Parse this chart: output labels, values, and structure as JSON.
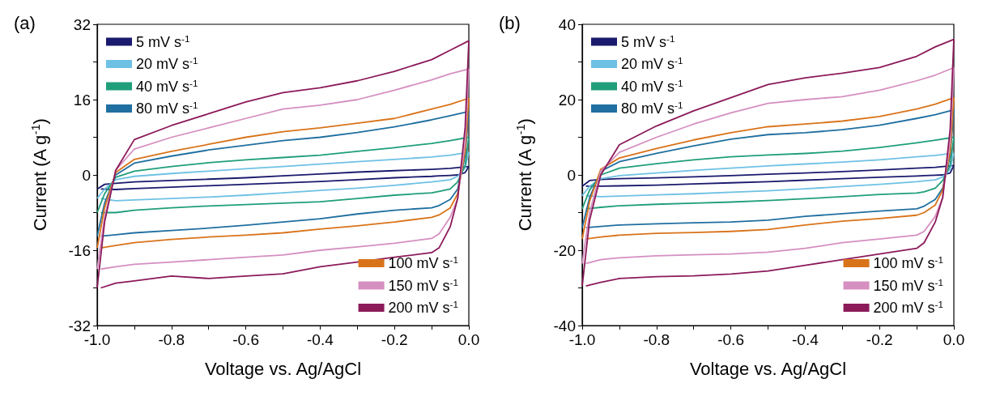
{
  "chart_data": [
    {
      "type": "line",
      "title": "(a)",
      "xlabel": "Voltage vs. Ag/AgCl",
      "ylabel": "Current (A g$^{-1}$)",
      "legend": "top left",
      "grid": false,
      "marker": "none",
      "line_style": "solid",
      "xlim": [
        -1,
        0
      ],
      "ylim": [
        -32,
        32
      ],
      "xticks": [
        {
          "value": -1,
          "label": "-1.0"
        },
        {
          "value": -0.9,
          "label": null
        },
        {
          "value": -0.8,
          "label": "-0.8"
        },
        {
          "value": -0.7,
          "label": null
        },
        {
          "value": -0.6,
          "label": "-0.6"
        },
        {
          "value": -0.5,
          "label": null
        },
        {
          "value": -0.4,
          "label": "-0.4"
        },
        {
          "value": -0.3,
          "label": null
        },
        {
          "value": -0.2,
          "label": "-0.2"
        },
        {
          "value": -0.1,
          "label": null
        },
        {
          "value": 0,
          "label": "0.0"
        }
      ],
      "yticks": [
        -32,
        {
          "value": -24,
          "label": null
        },
        -16,
        {
          "value": -8,
          "label": null
        },
        0,
        {
          "value": 8,
          "label": null
        },
        16,
        {
          "value": 24,
          "label": null
        },
        32
      ],
      "series": [
        {
          "name": "5 mV s$^{-1}$",
          "color": "#1a1a6e",
          "x": [
            -1,
            -0.98,
            -0.95,
            -0.9,
            -0.8,
            -0.7,
            -0.6,
            -0.5,
            -0.4,
            -0.3,
            -0.2,
            -0.1,
            -0.05,
            0
          ],
          "values": [
            -3,
            -2,
            -1.8,
            -1.5,
            -1.2,
            -0.9,
            -0.6,
            -0.2,
            0.2,
            0.6,
            0.9,
            1.2,
            1.4,
            1.8
          ]
        },
        {
          "color": "#1a1a6e",
          "x": [
            0,
            -0.01,
            -0.03,
            -0.05,
            -0.08,
            -0.1,
            -0.2,
            -0.3,
            -0.4,
            -0.5,
            -0.6,
            -0.7,
            -0.8,
            -0.9,
            -0.95,
            -0.99
          ],
          "values": [
            1.8,
            0.5,
            0,
            -0.1,
            -0.2,
            -0.3,
            -0.6,
            -1,
            -1.4,
            -1.7,
            -2,
            -2.3,
            -2.6,
            -2.9,
            -3.1,
            -3
          ]
        },
        {
          "name": "20 mV s$^{-1}$",
          "color": "#6ec1e4",
          "x": [
            -1,
            -0.98,
            -0.95,
            -0.9,
            -0.8,
            -0.7,
            -0.6,
            -0.5,
            -0.4,
            -0.3,
            -0.2,
            -0.1,
            -0.05,
            0
          ],
          "values": [
            -5,
            -3,
            -1,
            -0.3,
            0.3,
            0.8,
            1.3,
            1.8,
            2.3,
            2.8,
            3.3,
            3.8,
            4.2,
            4.8
          ]
        },
        {
          "color": "#6ec1e4",
          "x": [
            0,
            -0.01,
            -0.03,
            -0.05,
            -0.08,
            -0.1,
            -0.2,
            -0.3,
            -0.4,
            -0.5,
            -0.6,
            -0.7,
            -0.8,
            -0.9,
            -0.95,
            -0.99
          ],
          "values": [
            4.8,
            1.5,
            -0.3,
            -1,
            -1.3,
            -1.5,
            -2.2,
            -2.8,
            -3.3,
            -3.8,
            -4.3,
            -4.7,
            -5,
            -5.3,
            -5.5,
            -5
          ]
        },
        {
          "name": "40 mV s$^{-1}$",
          "color": "#1f9e7a",
          "x": [
            -1,
            -0.98,
            -0.95,
            -0.9,
            -0.8,
            -0.7,
            -0.6,
            -0.5,
            -0.4,
            -0.3,
            -0.2,
            -0.1,
            -0.05,
            0
          ],
          "values": [
            -8,
            -4,
            -0.5,
            0.8,
            1.8,
            2.6,
            3.2,
            3.7,
            4.2,
            5,
            5.8,
            6.7,
            7.3,
            8
          ]
        },
        {
          "color": "#1f9e7a",
          "x": [
            0,
            -0.01,
            -0.03,
            -0.05,
            -0.08,
            -0.1,
            -0.2,
            -0.3,
            -0.4,
            -0.5,
            -0.6,
            -0.7,
            -0.8,
            -0.9,
            -0.95,
            -0.99
          ],
          "values": [
            8,
            2,
            -1.5,
            -3,
            -3.5,
            -3.8,
            -4.3,
            -5,
            -5.7,
            -6,
            -6.3,
            -6.6,
            -7,
            -7.5,
            -8,
            -8
          ]
        },
        {
          "name": "80 mV s$^{-1}$",
          "color": "#1f6fa0",
          "x": [
            -1,
            -0.98,
            -0.95,
            -0.9,
            -0.8,
            -0.7,
            -0.6,
            -0.5,
            -0.4,
            -0.3,
            -0.2,
            -0.1,
            -0.05,
            0
          ],
          "values": [
            -13,
            -6,
            0,
            2.5,
            4,
            5.3,
            6.3,
            7.3,
            8,
            9,
            10.2,
            11.7,
            12.6,
            13.5
          ]
        },
        {
          "color": "#1f6fa0",
          "x": [
            0,
            -0.01,
            -0.03,
            -0.05,
            -0.08,
            -0.1,
            -0.2,
            -0.3,
            -0.4,
            -0.5,
            -0.6,
            -0.7,
            -0.8,
            -0.9,
            -0.95,
            -0.99
          ],
          "values": [
            13.5,
            4,
            -3,
            -5.2,
            -6.5,
            -7,
            -7.5,
            -8.3,
            -9.3,
            -10,
            -10.7,
            -11.3,
            -11.8,
            -12.3,
            -12.7,
            -13
          ]
        },
        {
          "name": "100 mV s$^{-1}$",
          "color": "#d9731a",
          "x": [
            -1,
            -0.98,
            -0.95,
            -0.9,
            -0.8,
            -0.7,
            -0.6,
            -0.5,
            -0.4,
            -0.3,
            -0.2,
            -0.1,
            -0.05,
            0
          ],
          "values": [
            -15.5,
            -7,
            0.5,
            3.3,
            5,
            6.5,
            8,
            9.2,
            10,
            11,
            12,
            14,
            15,
            16.3
          ]
        },
        {
          "color": "#d9731a",
          "x": [
            0,
            -0.01,
            -0.03,
            -0.05,
            -0.08,
            -0.1,
            -0.2,
            -0.3,
            -0.4,
            -0.5,
            -0.6,
            -0.7,
            -0.8,
            -0.9,
            -0.95,
            -0.99
          ],
          "values": [
            16.3,
            5,
            -4,
            -7,
            -8.5,
            -9,
            -10,
            -10.8,
            -11.5,
            -12.3,
            -12.8,
            -13.2,
            -13.7,
            -14.4,
            -15,
            -15.5
          ]
        },
        {
          "name": "150 mV s$^{-1}$",
          "color": "#d58fc0",
          "x": [
            -1,
            -0.98,
            -0.95,
            -0.9,
            -0.8,
            -0.7,
            -0.6,
            -0.5,
            -0.4,
            -0.3,
            -0.2,
            -0.1,
            -0.05,
            0
          ],
          "values": [
            -20,
            -9,
            1,
            5.5,
            8,
            10,
            12,
            14,
            14.8,
            16,
            18,
            20.2,
            21.5,
            22.5
          ]
        },
        {
          "color": "#d58fc0",
          "x": [
            0,
            -0.01,
            -0.03,
            -0.05,
            -0.08,
            -0.1,
            -0.2,
            -0.3,
            -0.4,
            -0.5,
            -0.6,
            -0.7,
            -0.8,
            -0.9,
            -0.95,
            -0.99
          ],
          "values": [
            22.5,
            7,
            -5,
            -9,
            -12.5,
            -13.5,
            -14.5,
            -15.3,
            -16,
            -17,
            -17.5,
            -18,
            -18.5,
            -19,
            -19.5,
            -20
          ]
        },
        {
          "name": "200 mV s$^{-1}$",
          "color": "#8b1a5a",
          "x": [
            -1,
            -0.98,
            -0.95,
            -0.9,
            -0.8,
            -0.7,
            -0.6,
            -0.5,
            -0.4,
            -0.3,
            -0.2,
            -0.1,
            -0.05,
            0
          ],
          "values": [
            -24,
            -10,
            1,
            7.5,
            10.5,
            13,
            15.5,
            17.5,
            18.5,
            20,
            22,
            24.5,
            26.5,
            28.5
          ]
        },
        {
          "color": "#8b1a5a",
          "x": [
            0,
            -0.01,
            -0.03,
            -0.05,
            -0.08,
            -0.1,
            -0.2,
            -0.3,
            -0.4,
            -0.5,
            -0.6,
            -0.7,
            -0.8,
            -0.9,
            -0.95,
            -0.99
          ],
          "values": [
            28.5,
            10,
            -5,
            -11,
            -15.5,
            -16.5,
            -17.5,
            -18.5,
            -19.5,
            -21,
            -21.5,
            -22,
            -21.5,
            -22.5,
            -23,
            -24
          ]
        }
      ]
    },
    {
      "type": "line",
      "title": "(b)",
      "xlabel": "Voltage vs. Ag/AgCl",
      "ylabel": "Current (A g$^{-1}$)",
      "legend": "top left",
      "grid": false,
      "marker": "none",
      "line_style": "solid",
      "xlim": [
        -1,
        0
      ],
      "ylim": [
        -40,
        40
      ],
      "xticks": [
        {
          "value": -1,
          "label": "-1.0"
        },
        {
          "value": -0.9,
          "label": null
        },
        {
          "value": -0.8,
          "label": "-0.8"
        },
        {
          "value": -0.7,
          "label": null
        },
        {
          "value": -0.6,
          "label": "-0.6"
        },
        {
          "value": -0.5,
          "label": null
        },
        {
          "value": -0.4,
          "label": "-0.4"
        },
        {
          "value": -0.3,
          "label": null
        },
        {
          "value": -0.2,
          "label": "-0.2"
        },
        {
          "value": -0.1,
          "label": null
        },
        {
          "value": 0,
          "label": "0.0"
        }
      ],
      "yticks": [
        -40,
        {
          "value": -30,
          "label": null
        },
        -20,
        {
          "value": -10,
          "label": null
        },
        0,
        {
          "value": 10,
          "label": null
        },
        20,
        {
          "value": 30,
          "label": null
        },
        40
      ],
      "series": [
        {
          "name": "5 mV s$^{-1}$",
          "color": "#1a1a6e",
          "x": [
            -1,
            -0.98,
            -0.95,
            -0.9,
            -0.8,
            -0.7,
            -0.6,
            -0.5,
            -0.4,
            -0.3,
            -0.2,
            -0.1,
            -0.05,
            0
          ],
          "values": [
            -3,
            -1.5,
            -1.2,
            -1,
            -0.8,
            -0.5,
            -0.2,
            0.2,
            0.5,
            0.9,
            1.3,
            1.8,
            2,
            2.5
          ]
        },
        {
          "color": "#1a1a6e",
          "x": [
            0,
            -0.01,
            -0.03,
            -0.05,
            -0.08,
            -0.1,
            -0.2,
            -0.3,
            -0.4,
            -0.5,
            -0.6,
            -0.7,
            -0.8,
            -0.9,
            -0.95,
            -0.99
          ],
          "values": [
            2.5,
            0.5,
            0,
            -0.1,
            -0.2,
            -0.3,
            -0.6,
            -1,
            -1.4,
            -1.8,
            -2.1,
            -2.4,
            -2.7,
            -2.9,
            -3,
            -3
          ]
        },
        {
          "name": "20 mV s$^{-1}$",
          "color": "#6ec1e4",
          "x": [
            -1,
            -0.98,
            -0.95,
            -0.9,
            -0.8,
            -0.7,
            -0.6,
            -0.5,
            -0.4,
            -0.3,
            -0.2,
            -0.1,
            -0.05,
            0
          ],
          "values": [
            -5.5,
            -3,
            -1,
            -0.2,
            0.5,
            1.2,
            1.8,
            2.4,
            2.9,
            3.4,
            4,
            4.8,
            5.2,
            5.8
          ]
        },
        {
          "color": "#6ec1e4",
          "x": [
            0,
            -0.01,
            -0.03,
            -0.05,
            -0.08,
            -0.1,
            -0.2,
            -0.3,
            -0.4,
            -0.5,
            -0.6,
            -0.7,
            -0.8,
            -0.9,
            -0.95,
            -0.99
          ],
          "values": [
            5.8,
            1.5,
            -0.5,
            -1.3,
            -1.6,
            -1.8,
            -2.5,
            -3.1,
            -3.7,
            -4.2,
            -4.6,
            -5,
            -5.3,
            -5.6,
            -5.8,
            -5.5
          ]
        },
        {
          "name": "40 mV s$^{-1}$",
          "color": "#1f9e7a",
          "x": [
            -1,
            -0.98,
            -0.95,
            -0.9,
            -0.8,
            -0.7,
            -0.6,
            -0.5,
            -0.4,
            -0.3,
            -0.2,
            -0.1,
            -0.05,
            0
          ],
          "values": [
            -9,
            -4,
            0,
            1.8,
            3,
            4,
            4.8,
            5.3,
            5.7,
            6.3,
            7.3,
            8.5,
            9.2,
            10
          ]
        },
        {
          "color": "#1f9e7a",
          "x": [
            0,
            -0.01,
            -0.03,
            -0.05,
            -0.08,
            -0.1,
            -0.2,
            -0.3,
            -0.4,
            -0.5,
            -0.6,
            -0.7,
            -0.8,
            -0.9,
            -0.95,
            -0.99
          ],
          "values": [
            10,
            2.5,
            -1.5,
            -3.5,
            -4.5,
            -4.8,
            -5.2,
            -5.8,
            -6.3,
            -6.8,
            -7.2,
            -7.5,
            -7.8,
            -8.2,
            -8.6,
            -9
          ]
        },
        {
          "name": "80 mV s$^{-1}$",
          "color": "#1f6fa0",
          "x": [
            -1,
            -0.98,
            -0.95,
            -0.9,
            -0.8,
            -0.7,
            -0.6,
            -0.5,
            -0.4,
            -0.3,
            -0.2,
            -0.1,
            -0.05,
            0
          ],
          "values": [
            -14,
            -6,
            1,
            3.5,
            5.7,
            7.7,
            9.5,
            10.7,
            11.2,
            12,
            13.2,
            15,
            16,
            17.3
          ]
        },
        {
          "color": "#1f6fa0",
          "x": [
            0,
            -0.01,
            -0.03,
            -0.05,
            -0.08,
            -0.1,
            -0.2,
            -0.3,
            -0.4,
            -0.5,
            -0.6,
            -0.7,
            -0.8,
            -0.9,
            -0.95,
            -0.99
          ],
          "values": [
            17.3,
            5,
            -3.5,
            -6.5,
            -8.3,
            -9,
            -9.6,
            -10.3,
            -11,
            -12,
            -12.5,
            -12.7,
            -13,
            -13.3,
            -13.7,
            -14
          ]
        },
        {
          "name": "100 mV s$^{-1}$",
          "color": "#d9731a",
          "x": [
            -1,
            -0.98,
            -0.95,
            -0.9,
            -0.8,
            -0.7,
            -0.6,
            -0.5,
            -0.4,
            -0.3,
            -0.2,
            -0.1,
            -0.05,
            0
          ],
          "values": [
            -17,
            -7,
            1.5,
            4.5,
            7,
            9.3,
            11.2,
            12.8,
            13.5,
            14.3,
            15.5,
            17.5,
            18.8,
            20.5
          ]
        },
        {
          "color": "#d9731a",
          "x": [
            0,
            -0.01,
            -0.03,
            -0.05,
            -0.08,
            -0.1,
            -0.2,
            -0.3,
            -0.4,
            -0.5,
            -0.6,
            -0.7,
            -0.8,
            -0.9,
            -0.95,
            -0.99
          ],
          "values": [
            20.5,
            6,
            -4,
            -8,
            -10,
            -10.7,
            -11.6,
            -12.3,
            -13.3,
            -14.5,
            -15,
            -15.3,
            -15.5,
            -16,
            -16.5,
            -17
          ]
        },
        {
          "name": "150 mV s$^{-1}$",
          "color": "#d58fc0",
          "x": [
            -1,
            -0.98,
            -0.95,
            -0.9,
            -0.8,
            -0.7,
            -0.6,
            -0.5,
            -0.4,
            -0.3,
            -0.2,
            -0.1,
            -0.05,
            0
          ],
          "values": [
            -23.5,
            -10,
            1,
            6,
            10,
            13.5,
            16.5,
            19,
            20,
            20.8,
            22.5,
            25,
            26.5,
            28.5
          ]
        },
        {
          "color": "#d58fc0",
          "x": [
            0,
            -0.01,
            -0.03,
            -0.05,
            -0.08,
            -0.1,
            -0.2,
            -0.3,
            -0.4,
            -0.5,
            -0.6,
            -0.7,
            -0.8,
            -0.9,
            -0.95,
            -0.99
          ],
          "values": [
            28.5,
            9,
            -6,
            -11,
            -15,
            -16,
            -17,
            -18,
            -19.5,
            -20.5,
            -21,
            -21.2,
            -21.5,
            -22,
            -22.5,
            -23.5
          ]
        },
        {
          "name": "200 mV s$^{-1}$",
          "color": "#8b1a5a",
          "x": [
            -1,
            -0.98,
            -0.95,
            -0.9,
            -0.8,
            -0.7,
            -0.6,
            -0.5,
            -0.4,
            -0.3,
            -0.2,
            -0.1,
            -0.05,
            0
          ],
          "values": [
            -29.5,
            -12,
            0,
            8,
            13,
            17,
            20.5,
            24,
            25.8,
            27,
            28.5,
            31.5,
            34,
            36
          ]
        },
        {
          "color": "#8b1a5a",
          "x": [
            0,
            -0.01,
            -0.03,
            -0.05,
            -0.08,
            -0.1,
            -0.2,
            -0.3,
            -0.4,
            -0.5,
            -0.6,
            -0.7,
            -0.8,
            -0.9,
            -0.95,
            -0.99
          ],
          "values": [
            36,
            12,
            -6,
            -12.5,
            -18,
            -19.5,
            -21,
            -22.5,
            -24,
            -25.5,
            -26.3,
            -26.8,
            -27,
            -27.5,
            -28.5,
            -29.5
          ]
        }
      ]
    }
  ]
}
